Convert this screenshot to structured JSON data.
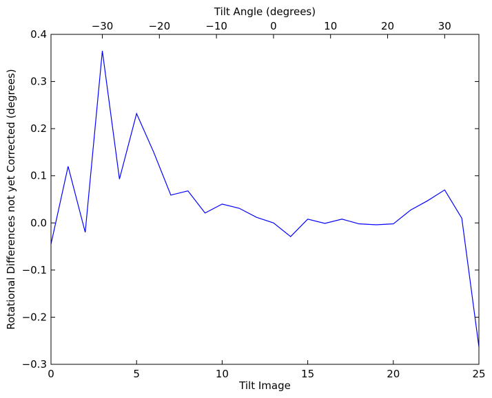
{
  "chart_data": {
    "type": "line",
    "xlabel": "Tilt Image",
    "ylabel": "Rotational Differences not yet Corrected (degrees)",
    "top_xlabel": "Tilt Angle (degrees)",
    "xlim": [
      0,
      25
    ],
    "ylim": [
      -0.3,
      0.4
    ],
    "grid": false,
    "x_ticks": [
      0,
      5,
      10,
      15,
      20,
      25
    ],
    "x_tick_labels": [
      "0",
      "5",
      "10",
      "15",
      "20",
      "25"
    ],
    "y_ticks": [
      -0.3,
      -0.2,
      -0.1,
      0.0,
      0.1,
      0.2,
      0.3,
      0.4
    ],
    "y_tick_labels": [
      "−0.3",
      "−0.2",
      "−0.1",
      "0.0",
      "0.1",
      "0.2",
      "0.3",
      "0.4"
    ],
    "top_x_tick_labels": [
      "−30",
      "−20",
      "−10",
      "0",
      "10",
      "20",
      "30"
    ],
    "top_x_tick_values": [
      -30,
      -20,
      -10,
      0,
      10,
      20,
      30
    ],
    "top_axis_map": {
      "angle_at_x0": -39,
      "degrees_per_image": 3
    },
    "series": [
      {
        "color": "#0000ff",
        "x": [
          0,
          1,
          2,
          3,
          4,
          5,
          6,
          7,
          8,
          9,
          10,
          11,
          12,
          13,
          14,
          15,
          16,
          17,
          18,
          19,
          20,
          21,
          22,
          23,
          24,
          25
        ],
        "y": [
          -0.045,
          0.12,
          -0.02,
          0.365,
          0.093,
          0.232,
          0.15,
          0.059,
          0.068,
          0.021,
          0.04,
          0.031,
          0.012,
          0.0,
          -0.029,
          0.008,
          -0.001,
          0.008,
          -0.002,
          -0.004,
          -0.002,
          0.027,
          0.047,
          0.07,
          0.01,
          -0.263
        ]
      }
    ]
  }
}
